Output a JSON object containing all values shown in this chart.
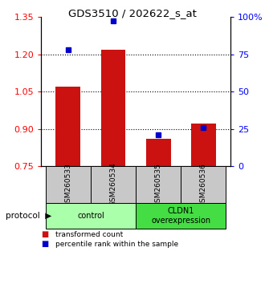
{
  "title": "GDS3510 / 202622_s_at",
  "categories": [
    "GSM260533",
    "GSM260534",
    "GSM260535",
    "GSM260536"
  ],
  "bar_values": [
    1.07,
    1.22,
    0.86,
    0.92
  ],
  "bar_bottom": 0.75,
  "blue_marker_values": [
    1.22,
    1.335,
    0.875,
    0.905
  ],
  "ylim_left": [
    0.75,
    1.35
  ],
  "ylim_right": [
    0,
    100
  ],
  "yticks_left": [
    0.75,
    0.9,
    1.05,
    1.2,
    1.35
  ],
  "yticks_right": [
    0,
    25,
    50,
    75,
    100
  ],
  "ytick_labels_right": [
    "0",
    "25",
    "50",
    "75",
    "100%"
  ],
  "hlines": [
    0.9,
    1.05,
    1.2
  ],
  "bar_color": "#CC1111",
  "marker_color": "#0000CC",
  "bar_width": 0.55,
  "protocol_groups": [
    {
      "label": "control",
      "indices": [
        0,
        1
      ],
      "color": "#AAFFAA"
    },
    {
      "label": "CLDN1\noverexpression",
      "indices": [
        2,
        3
      ],
      "color": "#44DD44"
    }
  ],
  "legend_items": [
    {
      "label": "transformed count",
      "color": "#CC1111"
    },
    {
      "label": "percentile rank within the sample",
      "color": "#0000CC"
    }
  ],
  "xticklabel_bg": "#C8C8C8"
}
